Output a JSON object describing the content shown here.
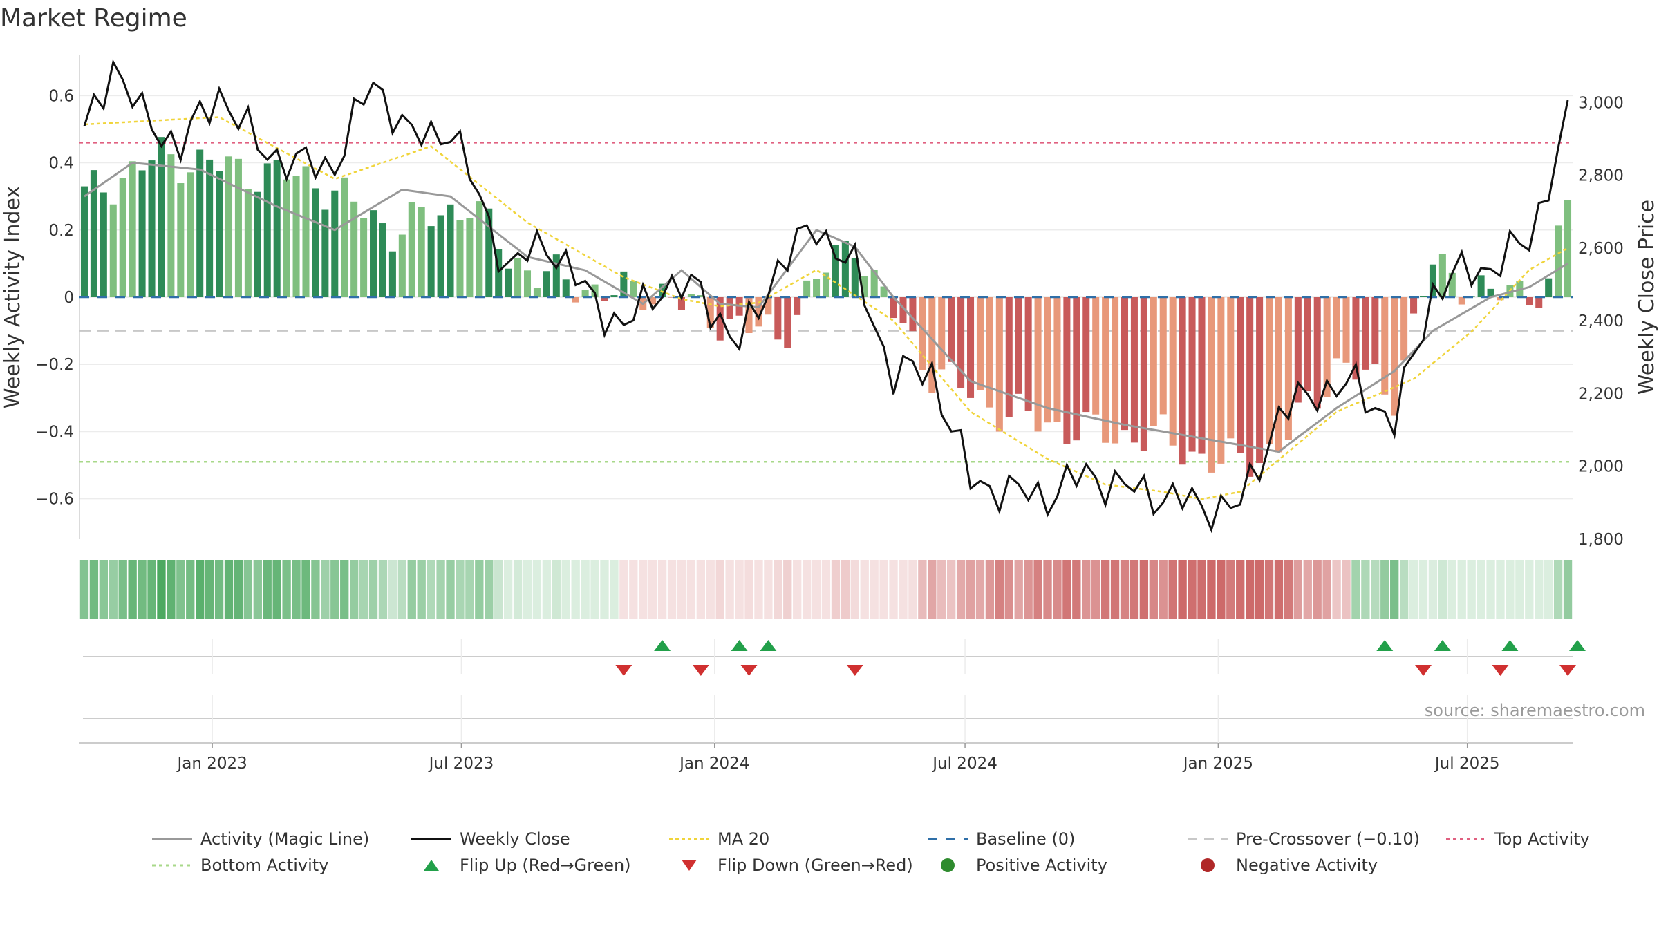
{
  "title": "Market Regime",
  "source": "source: sharemaestro.com",
  "colors": {
    "strong_pos": "#2e8b57",
    "weak_pos": "#7fbf7f",
    "strong_neg": "#c85a5a",
    "weak_neg": "#e8987a",
    "magic_line": "#999999",
    "close": "#111111",
    "ma20": "#f0d43a",
    "baseline": "#2f6fa8",
    "pre_cross": "#c8c8c8",
    "top": "#e06080",
    "bottom": "#a8d88a",
    "flip_up": "#22a04a",
    "flip_down": "#d03030"
  },
  "chart_data": {
    "type": "bar",
    "x_start": "2022-09-30",
    "week_count": 155,
    "y_left": {
      "label": "Weekly Activity Index",
      "range": [
        -0.72,
        0.72
      ],
      "ticks": [
        -0.6,
        -0.4,
        -0.2,
        0,
        0.2,
        0.4,
        0.6
      ],
      "tick_labels": [
        "−0.6",
        "−0.4",
        "−0.2",
        "0",
        "0.2",
        "0.4",
        "0.6"
      ]
    },
    "y_right": {
      "label": "Weekly Close Price",
      "range": [
        1800,
        3130
      ],
      "ticks": [
        1800,
        2000,
        2200,
        2400,
        2600,
        2800,
        3000
      ],
      "tick_labels": [
        "1,800",
        "2,000",
        "2,200",
        "2,400",
        "2,600",
        "2,800",
        "3,000"
      ]
    },
    "x_ticks": [
      {
        "date": "2023-01-01",
        "label": "Jan 2023"
      },
      {
        "date": "2023-07-01",
        "label": "Jul 2023"
      },
      {
        "date": "2024-01-01",
        "label": "Jan 2024"
      },
      {
        "date": "2024-07-01",
        "label": "Jul 2024"
      },
      {
        "date": "2025-01-01",
        "label": "Jan 2025"
      },
      {
        "date": "2025-07-01",
        "label": "Jul 2025"
      }
    ],
    "reference_lines": {
      "baseline": 0,
      "pre_crossover": -0.1,
      "top_activity": 0.46,
      "bottom_activity": -0.49
    },
    "activity_keys": [
      0,
      8,
      16,
      24,
      32,
      40,
      44,
      48,
      52,
      56,
      60,
      64,
      68,
      72,
      76,
      80,
      82,
      88,
      96,
      104,
      112,
      118,
      124,
      130,
      136,
      140,
      146,
      150,
      152,
      154
    ],
    "activity_vals": [
      0.3,
      0.42,
      0.38,
      0.35,
      0.2,
      0.28,
      0.12,
      0.06,
      0.03,
      0.01,
      0.02,
      -0.05,
      -0.08,
      -0.12,
      0.05,
      0.18,
      0.04,
      -0.22,
      -0.35,
      -0.4,
      -0.42,
      -0.5,
      -0.45,
      -0.2,
      -0.28,
      0.1,
      0.0,
      0.03,
      0.02,
      0.3
    ],
    "magic_keys": [
      0,
      5,
      12,
      20,
      26,
      33,
      38,
      46,
      52,
      58,
      62,
      66,
      70,
      76,
      80,
      84,
      92,
      100,
      108,
      116,
      124,
      130,
      136,
      140,
      146,
      150,
      154
    ],
    "magic_vals": [
      0.3,
      0.4,
      0.38,
      0.27,
      0.2,
      0.32,
      0.3,
      0.12,
      0.08,
      -0.02,
      0.08,
      -0.02,
      -0.03,
      0.2,
      0.15,
      0.0,
      -0.25,
      -0.33,
      -0.38,
      -0.42,
      -0.46,
      -0.33,
      -0.22,
      -0.1,
      0.0,
      0.03,
      0.1
    ],
    "close_keys": [
      0,
      3,
      6,
      10,
      14,
      18,
      22,
      26,
      30,
      34,
      38,
      44,
      48,
      52,
      56,
      60,
      64,
      68,
      72,
      76,
      80,
      84,
      86,
      88,
      92,
      96,
      100,
      104,
      108,
      112,
      116,
      120,
      124,
      128,
      132,
      136,
      140,
      142,
      146,
      150,
      154
    ],
    "close_vals": [
      2910,
      3110,
      2960,
      2880,
      3030,
      2880,
      2830,
      2830,
      3060,
      2900,
      2930,
      2540,
      2620,
      2480,
      2380,
      2500,
      2480,
      2330,
      2550,
      2660,
      2540,
      2250,
      2260,
      2260,
      1960,
      1930,
      1920,
      1980,
      1940,
      1920,
      1890,
      1890,
      2140,
      2210,
      2220,
      2120,
      2480,
      2520,
      2550,
      2620,
      2950
    ],
    "ma_keys": [
      0,
      14,
      26,
      36,
      46,
      56,
      62,
      66,
      70,
      76,
      84,
      92,
      100,
      106,
      112,
      116,
      120,
      130,
      138,
      144,
      150,
      154
    ],
    "ma_vals": [
      2940,
      2960,
      2790,
      2880,
      2670,
      2520,
      2460,
      2440,
      2450,
      2540,
      2400,
      2150,
      2020,
      1950,
      1930,
      1910,
      1930,
      2150,
      2240,
      2370,
      2540,
      2600
    ],
    "regime_strip": {
      "positive_until": 56,
      "negative_until": 132
    },
    "flip_up_weeks": [
      60,
      68,
      71,
      135,
      141,
      148,
      155
    ],
    "flip_down_weeks": [
      56,
      64,
      69,
      80,
      139,
      147,
      154
    ],
    "legend": [
      {
        "key": "magic",
        "label": "Activity (Magic Line)"
      },
      {
        "key": "close",
        "label": "Weekly Close"
      },
      {
        "key": "ma20",
        "label": "MA 20"
      },
      {
        "key": "baseline",
        "label": "Baseline (0)"
      },
      {
        "key": "precross",
        "label": "Pre-Crossover (−0.10)"
      },
      {
        "key": "top",
        "label": "Top Activity"
      },
      {
        "key": "bottom",
        "label": "Bottom Activity"
      },
      {
        "key": "flipup",
        "label": "Flip Up (Red→Green)"
      },
      {
        "key": "flipdown",
        "label": "Flip Down (Green→Red)"
      },
      {
        "key": "pos",
        "label": "Positive Activity"
      },
      {
        "key": "neg",
        "label": "Negative Activity"
      }
    ]
  }
}
